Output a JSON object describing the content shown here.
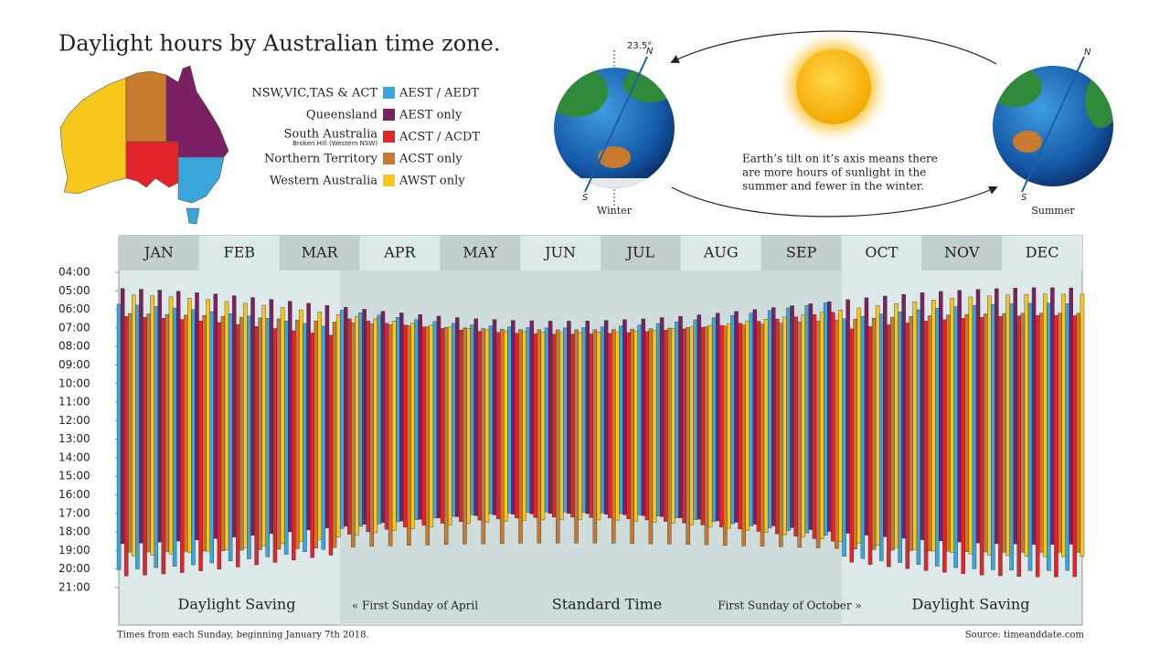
{
  "chart_data": {
    "type": "range-bar",
    "title": "Daylight hours by Australian time zone.",
    "months": [
      "JAN",
      "FEB",
      "MAR",
      "APR",
      "MAY",
      "JUN",
      "JUL",
      "AUG",
      "SEP",
      "OCT",
      "NOV",
      "DEC"
    ],
    "ylim": [
      4,
      21
    ],
    "y_inverted": true,
    "yticks": [
      {
        "value": 4,
        "label": "04:00"
      },
      {
        "value": 5,
        "label": "05:00"
      },
      {
        "value": 6,
        "label": "06:00"
      },
      {
        "value": 7,
        "label": "07:00"
      },
      {
        "value": 8,
        "label": "08:00"
      },
      {
        "value": 9,
        "label": "09:00"
      },
      {
        "value": 10,
        "label": "10:00"
      },
      {
        "value": 11,
        "label": "11:00"
      },
      {
        "value": 12,
        "label": "12:00"
      },
      {
        "value": 13,
        "label": "13:00"
      },
      {
        "value": 14,
        "label": "14:00"
      },
      {
        "value": 15,
        "label": "15:00"
      },
      {
        "value": 16,
        "label": "16:00"
      },
      {
        "value": 17,
        "label": "17:00"
      },
      {
        "value": 18,
        "label": "18:00"
      },
      {
        "value": 19,
        "label": "19:00"
      },
      {
        "value": 20,
        "label": "20:00"
      },
      {
        "value": 21,
        "label": "21:00"
      }
    ],
    "series": [
      {
        "name": "AEST / AEDT",
        "region": "NSW,VIC,TAS & ACT",
        "color": "#3aa7dc",
        "sunrise": [
          5.72,
          5.77,
          5.84,
          5.92,
          6.01,
          6.12,
          6.23,
          6.35,
          6.48,
          6.62,
          6.76,
          6.9,
          6.04,
          6.18,
          6.31,
          6.43,
          6.55,
          6.65,
          6.75,
          6.83,
          6.89,
          6.94,
          6.98,
          7.0,
          7.0,
          6.98,
          6.95,
          6.9,
          6.84,
          6.76,
          6.67,
          6.56,
          6.45,
          6.33,
          6.2,
          6.06,
          5.92,
          5.78,
          5.64,
          6.5,
          6.37,
          6.25,
          6.13,
          6.02,
          5.93,
          5.85,
          5.78,
          5.73,
          5.69,
          5.67,
          5.67,
          5.69
        ],
        "sunset": [
          20.03,
          19.99,
          19.92,
          19.85,
          19.77,
          19.67,
          19.56,
          19.45,
          19.33,
          19.2,
          19.07,
          18.94,
          17.81,
          17.69,
          17.56,
          17.45,
          17.34,
          17.24,
          17.15,
          17.08,
          17.02,
          16.97,
          16.94,
          16.92,
          16.92,
          16.94,
          16.97,
          17.01,
          17.07,
          17.14,
          17.23,
          17.33,
          17.43,
          17.55,
          17.67,
          17.79,
          17.92,
          18.05,
          18.18,
          19.31,
          19.43,
          19.55,
          19.65,
          19.75,
          19.84,
          19.92,
          19.98,
          20.03,
          20.06,
          20.08,
          20.08,
          20.07
        ]
      },
      {
        "name": "AEST only",
        "region": "Queensland",
        "color": "#7b2163",
        "sunrise": [
          4.87,
          4.91,
          4.96,
          5.02,
          5.09,
          5.17,
          5.26,
          5.36,
          5.46,
          5.56,
          5.67,
          5.78,
          5.89,
          5.99,
          6.1,
          6.19,
          6.28,
          6.36,
          6.44,
          6.5,
          6.55,
          6.59,
          6.61,
          6.63,
          6.63,
          6.62,
          6.59,
          6.55,
          6.51,
          6.44,
          6.37,
          6.29,
          6.2,
          6.11,
          6.01,
          5.9,
          5.8,
          5.69,
          5.58,
          5.47,
          5.37,
          5.28,
          5.19,
          5.1,
          5.03,
          4.97,
          4.92,
          4.88,
          4.85,
          4.83,
          4.83,
          4.84
        ],
        "sunset": [
          18.63,
          18.6,
          18.55,
          18.49,
          18.43,
          18.35,
          18.27,
          18.18,
          18.09,
          17.99,
          17.89,
          17.79,
          17.69,
          17.59,
          17.5,
          17.41,
          17.32,
          17.25,
          17.18,
          17.12,
          17.08,
          17.04,
          17.02,
          17.0,
          17.0,
          17.01,
          17.04,
          17.07,
          17.12,
          17.17,
          17.24,
          17.31,
          17.4,
          17.48,
          17.58,
          17.67,
          17.77,
          17.87,
          17.97,
          18.07,
          18.17,
          18.26,
          18.34,
          18.42,
          18.48,
          18.54,
          18.59,
          18.63,
          18.65,
          18.67,
          18.67,
          18.66
        ]
      },
      {
        "name": "ACST / ACDT",
        "region": "South Australia",
        "region_note": "Broken Hill (Western NSW)",
        "color": "#e3242b",
        "sunrise": [
          6.38,
          6.42,
          6.47,
          6.54,
          6.62,
          6.71,
          6.81,
          6.92,
          7.03,
          7.15,
          7.27,
          7.39,
          6.51,
          6.62,
          6.74,
          6.84,
          6.94,
          7.03,
          7.11,
          7.18,
          7.24,
          7.28,
          7.31,
          7.33,
          7.33,
          7.32,
          7.29,
          7.25,
          7.19,
          7.12,
          7.05,
          6.96,
          6.86,
          6.75,
          6.64,
          6.52,
          6.4,
          6.28,
          6.16,
          7.05,
          6.93,
          6.83,
          6.73,
          6.63,
          6.55,
          6.48,
          6.43,
          6.38,
          6.35,
          6.33,
          6.33,
          6.34
        ],
        "sunset": [
          20.37,
          20.32,
          20.26,
          20.19,
          20.1,
          20.0,
          19.89,
          19.77,
          19.64,
          19.51,
          19.38,
          19.25,
          18.12,
          17.99,
          17.86,
          17.74,
          17.63,
          17.53,
          17.44,
          17.36,
          17.3,
          17.25,
          17.22,
          17.2,
          17.2,
          17.22,
          17.25,
          17.29,
          17.35,
          17.43,
          17.52,
          17.62,
          17.73,
          17.84,
          17.97,
          18.1,
          18.23,
          18.36,
          18.5,
          19.63,
          19.75,
          19.87,
          19.98,
          20.08,
          20.17,
          20.25,
          20.32,
          20.36,
          20.4,
          20.42,
          20.42,
          20.41
        ]
      },
      {
        "name": "ACST only",
        "region": "Northern Territory",
        "color": "#c97a2c",
        "sunrise": [
          6.22,
          6.24,
          6.27,
          6.3,
          6.33,
          6.37,
          6.42,
          6.46,
          6.51,
          6.57,
          6.62,
          6.68,
          6.73,
          6.78,
          6.83,
          6.88,
          6.93,
          6.97,
          7.0,
          7.03,
          7.06,
          7.08,
          7.09,
          7.1,
          7.1,
          7.09,
          7.08,
          7.06,
          7.04,
          7.01,
          6.97,
          6.93,
          6.89,
          6.84,
          6.79,
          6.74,
          6.68,
          6.63,
          6.58,
          6.52,
          6.47,
          6.42,
          6.38,
          6.34,
          6.3,
          6.27,
          6.24,
          6.22,
          6.21,
          6.2,
          6.2,
          6.21
        ],
        "sunset": [
          19.09,
          19.08,
          19.06,
          19.05,
          19.03,
          19.01,
          18.98,
          18.95,
          18.93,
          18.9,
          18.87,
          18.84,
          18.81,
          18.78,
          18.75,
          18.72,
          18.7,
          18.67,
          18.65,
          18.64,
          18.62,
          18.61,
          18.6,
          18.6,
          18.6,
          18.6,
          18.61,
          18.62,
          18.64,
          18.65,
          18.67,
          18.69,
          18.72,
          18.75,
          18.77,
          18.8,
          18.83,
          18.86,
          18.89,
          18.92,
          18.95,
          18.98,
          19.0,
          19.02,
          19.04,
          19.06,
          19.08,
          19.09,
          19.1,
          19.1,
          19.1,
          19.1
        ]
      },
      {
        "name": "AWST only",
        "region": "Western Australia",
        "color": "#f7c81b",
        "sunrise": [
          5.22,
          5.26,
          5.32,
          5.39,
          5.47,
          5.57,
          5.67,
          5.78,
          5.9,
          6.02,
          6.14,
          6.27,
          6.39,
          6.51,
          6.63,
          6.74,
          6.85,
          6.94,
          7.02,
          7.1,
          7.16,
          7.2,
          7.23,
          7.25,
          7.25,
          7.23,
          7.21,
          7.16,
          7.11,
          7.04,
          6.95,
          6.86,
          6.76,
          6.65,
          6.53,
          6.41,
          6.29,
          6.16,
          6.04,
          5.92,
          5.8,
          5.69,
          5.58,
          5.49,
          5.4,
          5.33,
          5.27,
          5.22,
          5.19,
          5.17,
          5.17,
          5.18
        ],
        "sunset": [
          19.29,
          19.24,
          19.19,
          19.12,
          19.04,
          18.95,
          18.85,
          18.74,
          18.63,
          18.51,
          18.4,
          18.27,
          18.16,
          18.04,
          17.93,
          17.82,
          17.72,
          17.63,
          17.55,
          17.48,
          17.42,
          17.38,
          17.35,
          17.33,
          17.33,
          17.35,
          17.37,
          17.41,
          17.47,
          17.54,
          17.62,
          17.71,
          17.8,
          17.91,
          18.02,
          18.14,
          18.26,
          18.38,
          18.5,
          18.61,
          18.73,
          18.84,
          18.94,
          19.03,
          19.11,
          19.18,
          19.24,
          19.28,
          19.31,
          19.33,
          19.33,
          19.32
        ]
      }
    ],
    "bands": [
      "Daylight Saving",
      "« First Sunday of April",
      "Standard Time",
      "First Sunday of October »",
      "Daylight Saving"
    ],
    "footnote": "Times from each Sunday, beginning January 7th 2018.",
    "source": "Source: timeanddate.com"
  },
  "diagram": {
    "tilt": "23.5°",
    "north": "N",
    "south": "S",
    "winter": "Winter",
    "summer": "Summer",
    "caption": [
      "Earth’s tilt on it’s axis means there",
      "are more hours of sunlight in the",
      "summer and fewer in the winter."
    ]
  }
}
